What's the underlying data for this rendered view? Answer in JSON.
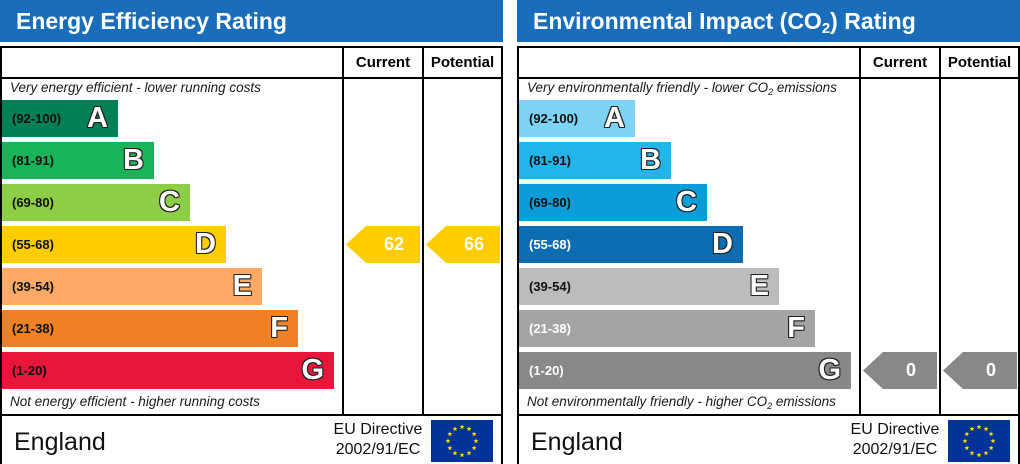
{
  "chart_data": [
    {
      "type": "bar",
      "title": "Energy Efficiency Rating",
      "columns": [
        "Current",
        "Potential"
      ],
      "top_note": "Very energy efficient - lower running costs",
      "bottom_note": "Not energy efficient - higher running costs",
      "bands": [
        {
          "range": "(92-100)",
          "letter": "A",
          "color": "#008054"
        },
        {
          "range": "(81-91)",
          "letter": "B",
          "color": "#19b459"
        },
        {
          "range": "(69-80)",
          "letter": "C",
          "color": "#8dce46"
        },
        {
          "range": "(55-68)",
          "letter": "D",
          "color": "#ffcc00"
        },
        {
          "range": "(39-54)",
          "letter": "E",
          "color": "#fcaa65"
        },
        {
          "range": "(21-38)",
          "letter": "F",
          "color": "#ef8023"
        },
        {
          "range": "(1-20)",
          "letter": "G",
          "color": "#e9153b"
        }
      ],
      "ratings": [
        {
          "column": "Current",
          "value": 62,
          "label": "62",
          "band": "D",
          "color": "#ffcc00"
        },
        {
          "column": "Potential",
          "value": 66,
          "label": "66",
          "band": "D",
          "color": "#ffcc00"
        }
      ],
      "country": "England",
      "directive": [
        "EU Directive",
        "2002/91/EC"
      ]
    },
    {
      "type": "bar",
      "title_parts": {
        "before": "Environmental Impact (CO",
        "sub": "2",
        "after": ") Rating"
      },
      "columns": [
        "Current",
        "Potential"
      ],
      "top_note_parts": {
        "before": "Very environmentally friendly - lower CO",
        "sub": "2",
        "after": " emissions"
      },
      "bottom_note_parts": {
        "before": "Not environmentally friendly - higher CO",
        "sub": "2",
        "after": " emissions"
      },
      "bands": [
        {
          "range": "(92-100)",
          "letter": "A",
          "color": "#7ed2f4"
        },
        {
          "range": "(81-91)",
          "letter": "B",
          "color": "#22b5eb"
        },
        {
          "range": "(69-80)",
          "letter": "C",
          "color": "#0b9dd8"
        },
        {
          "range": "(55-68)",
          "letter": "D",
          "color": "#0d6db3"
        },
        {
          "range": "(39-54)",
          "letter": "E",
          "color": "#bcbcbc"
        },
        {
          "range": "(21-38)",
          "letter": "F",
          "color": "#a4a4a4"
        },
        {
          "range": "(1-20)",
          "letter": "G",
          "color": "#888888"
        }
      ],
      "ratings": [
        {
          "column": "Current",
          "value": 0,
          "label": "0",
          "band": "G",
          "color": "#888888"
        },
        {
          "column": "Potential",
          "value": 0,
          "label": "0",
          "band": "G",
          "color": "#888888"
        }
      ],
      "country": "England",
      "directive": [
        "EU Directive",
        "2002/91/EC"
      ]
    }
  ]
}
